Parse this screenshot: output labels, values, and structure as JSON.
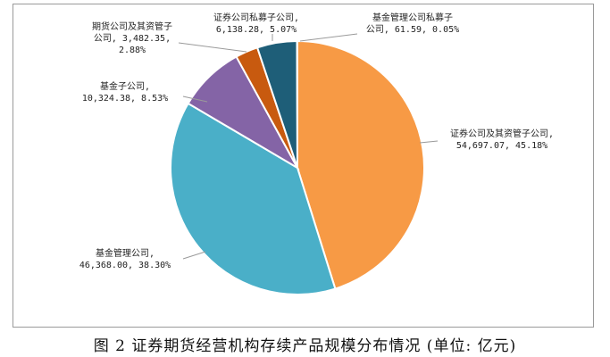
{
  "chart_data": {
    "type": "pie",
    "title": "",
    "slices": [
      {
        "label": "证券公司及其资管子公司",
        "value": 54697.07,
        "percent": "45.18%",
        "value_text": "54,697.07",
        "color": "#f79a45"
      },
      {
        "label": "基金管理公司",
        "value": 46368.0,
        "percent": "38.30%",
        "value_text": "46,368.00",
        "color": "#4aafc8"
      },
      {
        "label": "基金子公司",
        "value": 10324.38,
        "percent": "8.53%",
        "value_text": "10,324.38",
        "color": "#8464a6"
      },
      {
        "label": "期货公司及其资管子公司",
        "value": 3482.35,
        "percent": "2.88%",
        "value_text": "3,482.35",
        "color": "#c85a0f"
      },
      {
        "label": "证券公司私募子公司",
        "value": 6138.28,
        "percent": "5.07%",
        "value_text": "6,138.28",
        "color": "#1e5e78"
      },
      {
        "label": "基金管理公司私募子公司",
        "value": 61.59,
        "percent": "0.05%",
        "value_text": "61.59",
        "color": "#f79a45"
      }
    ],
    "data_labels": [
      [
        "证券公司及其资管子公司,",
        "54,697.07, 45.18%"
      ],
      [
        "基金管理公司,",
        "46,368.00, 38.30%"
      ],
      [
        "基金子公司,",
        "10,324.38, 8.53%"
      ],
      [
        "期货公司及其资管子",
        "公司, 3,482.35,",
        "2.88%"
      ],
      [
        "证券公司私募子公司,",
        "6,138.28, 5.07%"
      ],
      [
        "基金管理公司私募子",
        "公司, 61.59, 0.05%"
      ]
    ]
  },
  "caption": "图 2  证券期货经营机构存续产品规模分布情况 (单位: 亿元)"
}
